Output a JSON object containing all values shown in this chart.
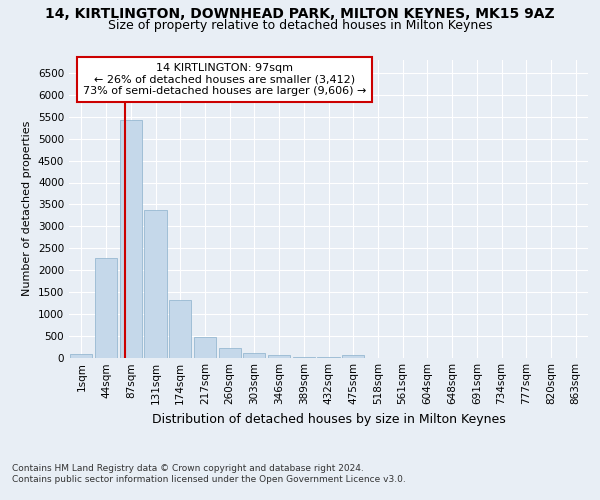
{
  "title1": "14, KIRTLINGTON, DOWNHEAD PARK, MILTON KEYNES, MK15 9AZ",
  "title2": "Size of property relative to detached houses in Milton Keynes",
  "xlabel": "Distribution of detached houses by size in Milton Keynes",
  "ylabel": "Number of detached properties",
  "footer1": "Contains HM Land Registry data © Crown copyright and database right 2024.",
  "footer2": "Contains public sector information licensed under the Open Government Licence v3.0.",
  "annotation_title": "14 KIRTLINGTON: 97sqm",
  "annotation_line1": "← 26% of detached houses are smaller (3,412)",
  "annotation_line2": "73% of semi-detached houses are larger (9,606) →",
  "bar_labels": [
    "1sqm",
    "44sqm",
    "87sqm",
    "131sqm",
    "174sqm",
    "217sqm",
    "260sqm",
    "303sqm",
    "346sqm",
    "389sqm",
    "432sqm",
    "475sqm",
    "518sqm",
    "561sqm",
    "604sqm",
    "648sqm",
    "691sqm",
    "734sqm",
    "777sqm",
    "820sqm",
    "863sqm"
  ],
  "bar_values": [
    70,
    2270,
    5440,
    3380,
    1310,
    475,
    210,
    95,
    50,
    10,
    5,
    55,
    0,
    0,
    0,
    0,
    0,
    0,
    0,
    0,
    0
  ],
  "bar_color": "#c5d8ea",
  "bar_edge_color": "#8ab0cc",
  "red_line_color": "#cc0000",
  "red_line_x": 1.77,
  "ylim": [
    0,
    6800
  ],
  "yticks": [
    0,
    500,
    1000,
    1500,
    2000,
    2500,
    3000,
    3500,
    4000,
    4500,
    5000,
    5500,
    6000,
    6500
  ],
  "bg_color": "#e8eef5",
  "grid_color": "#ffffff",
  "annotation_box_color": "#ffffff",
  "annotation_border_color": "#cc0000",
  "title1_fontsize": 10,
  "title2_fontsize": 9,
  "xlabel_fontsize": 9,
  "ylabel_fontsize": 8,
  "tick_fontsize": 7.5,
  "annotation_fontsize": 8,
  "footer_fontsize": 6.5
}
